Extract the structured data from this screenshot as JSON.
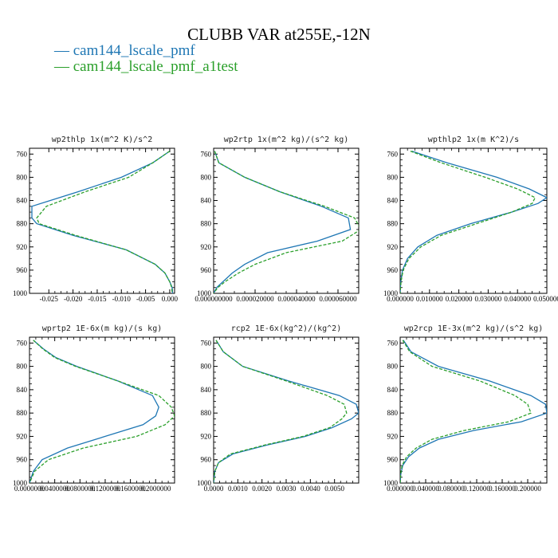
{
  "figure": {
    "title": "CLUBB VAR at255E,-12N",
    "legend": [
      {
        "label": "— cam144_lscale_pmf",
        "color": "#1f77b4",
        "dash": false
      },
      {
        "label": "— cam144_lscale_pmf_a1test",
        "color": "#2ca02c",
        "dash": true
      }
    ]
  },
  "chart_data": [
    {
      "type": "line",
      "title": "wp2thlp   1x(m^2 K)/s^2",
      "xlim": [
        -0.029,
        0.001
      ],
      "ylim": [
        1000,
        750
      ],
      "xticks": [
        -0.025,
        -0.02,
        -0.015,
        -0.01,
        -0.005,
        0.0
      ],
      "xtick_labels": [
        "-0.025",
        "-0.020",
        "-0.015",
        "-0.010",
        "-0.005",
        "0.000"
      ],
      "yticks": [
        760,
        800,
        840,
        880,
        920,
        960,
        1000
      ],
      "y": [
        755,
        775,
        800,
        825,
        850,
        870,
        880,
        900,
        925,
        950,
        965,
        980,
        990,
        1000
      ],
      "series": [
        {
          "name": "cam144_lscale_pmf",
          "color": "#1f77b4",
          "dash": false,
          "x": [
            0.0,
            -0.0035,
            -0.01,
            -0.019,
            -0.0285,
            -0.0285,
            -0.0275,
            -0.02,
            -0.009,
            -0.003,
            -0.001,
            0.0,
            0.0005,
            0.0006
          ]
        },
        {
          "name": "cam144_lscale_pmf_a1test",
          "color": "#2ca02c",
          "dash": true,
          "x": [
            0.0,
            -0.0035,
            -0.0085,
            -0.0175,
            -0.0255,
            -0.0275,
            -0.027,
            -0.0195,
            -0.009,
            -0.003,
            -0.001,
            0.0,
            0.0004,
            0.0005
          ]
        }
      ]
    },
    {
      "type": "line",
      "title": "wp2rtp   1x(m^2 kg)/(s^2 kg)",
      "xlim": [
        0.0,
        7e-05
      ],
      "ylim": [
        1000,
        750
      ],
      "xticks": [
        0.0,
        2e-05,
        4e-05,
        6e-05
      ],
      "xtick_labels": [
        "0.000000000",
        "0.000020000",
        "0.000040000",
        "0.000060000"
      ],
      "yticks": [
        760,
        800,
        840,
        880,
        920,
        960,
        1000
      ],
      "y": [
        755,
        775,
        800,
        825,
        850,
        870,
        890,
        910,
        930,
        950,
        965,
        980,
        990,
        1000
      ],
      "series": [
        {
          "name": "cam144_lscale_pmf",
          "color": "#1f77b4",
          "dash": false,
          "x": [
            5e-07,
            2.5e-06,
            1.5e-05,
            3.2e-05,
            5.2e-05,
            6.5e-05,
            6.6e-05,
            5e-05,
            2.6e-05,
            1.5e-05,
            9e-06,
            4.5e-06,
            1.5e-06,
            0.0
          ]
        },
        {
          "name": "cam144_lscale_pmf_a1test",
          "color": "#2ca02c",
          "dash": true,
          "x": [
            5e-07,
            2.5e-06,
            1.5e-05,
            3.2e-05,
            5.35e-05,
            6.8e-05,
            7.1e-05,
            6.2e-05,
            3.5e-05,
            2e-05,
            1.2e-05,
            5.5e-06,
            2e-06,
            0.0
          ]
        }
      ]
    },
    {
      "type": "line",
      "title": "wpthlp2   1x(m K^2)/s",
      "xlim": [
        0.0,
        0.05
      ],
      "ylim": [
        1000,
        750
      ],
      "xticks": [
        0.0,
        0.01,
        0.02,
        0.03,
        0.04,
        0.05
      ],
      "xtick_labels": [
        "0.000000",
        "0.010000",
        "0.020000",
        "0.030000",
        "0.040000",
        "0.050000"
      ],
      "yticks": [
        760,
        800,
        840,
        880,
        920,
        960,
        1000
      ],
      "y": [
        755,
        775,
        800,
        820,
        835,
        845,
        860,
        880,
        900,
        920,
        940,
        960,
        980,
        1000
      ],
      "series": [
        {
          "name": "cam144_lscale_pmf",
          "color": "#1f77b4",
          "dash": false,
          "x": [
            0.004,
            0.016,
            0.033,
            0.044,
            0.05,
            0.047,
            0.038,
            0.024,
            0.0125,
            0.006,
            0.0025,
            0.0008,
            0.0002,
            0.0
          ]
        },
        {
          "name": "cam144_lscale_pmf_a1test",
          "color": "#2ca02c",
          "dash": true,
          "x": [
            0.0035,
            0.014,
            0.029,
            0.04,
            0.046,
            0.045,
            0.038,
            0.026,
            0.014,
            0.007,
            0.003,
            0.001,
            0.0003,
            0.0
          ]
        }
      ]
    },
    {
      "type": "line",
      "title": "wprtp2   1E-6x(m kg)/(s kg)",
      "xlim": [
        0.0,
        0.23
      ],
      "ylim": [
        1000,
        750
      ],
      "xticks": [
        0.0,
        0.04,
        0.08,
        0.12,
        0.16,
        0.2
      ],
      "xtick_labels": [
        "0.0000000",
        "0.0400000",
        "0.0800000",
        "0.1200000",
        "0.1600000",
        "0.2000000"
      ],
      "yticks": [
        760,
        800,
        840,
        880,
        920,
        960,
        1000
      ],
      "y": [
        755,
        770,
        785,
        800,
        825,
        850,
        870,
        885,
        900,
        920,
        940,
        960,
        980,
        1000
      ],
      "series": [
        {
          "name": "cam144_lscale_pmf",
          "color": "#1f77b4",
          "dash": false,
          "x": [
            0.006,
            0.022,
            0.042,
            0.075,
            0.14,
            0.195,
            0.205,
            0.2,
            0.18,
            0.12,
            0.06,
            0.02,
            0.006,
            0.0
          ]
        },
        {
          "name": "cam144_lscale_pmf_a1test",
          "color": "#2ca02c",
          "dash": true,
          "x": [
            0.006,
            0.021,
            0.04,
            0.073,
            0.14,
            0.205,
            0.225,
            0.23,
            0.215,
            0.17,
            0.085,
            0.03,
            0.008,
            0.0
          ]
        }
      ]
    },
    {
      "type": "line",
      "title": "rcp2   1E-6x(kg^2)/(kg^2)",
      "xlim": [
        0.0,
        0.006
      ],
      "ylim": [
        1000,
        750
      ],
      "xticks": [
        0.0,
        0.001,
        0.002,
        0.003,
        0.004,
        0.005
      ],
      "xtick_labels": [
        "0.0000",
        "0.0010",
        "0.0020",
        "0.0030",
        "0.0040",
        "0.0050"
      ],
      "yticks": [
        760,
        800,
        840,
        880,
        920,
        960,
        1000
      ],
      "y": [
        755,
        775,
        800,
        825,
        850,
        865,
        880,
        890,
        905,
        920,
        935,
        950,
        965,
        980,
        1000
      ],
      "series": [
        {
          "name": "cam144_lscale_pmf",
          "color": "#1f77b4",
          "dash": false,
          "x": [
            0.0001,
            0.0004,
            0.0012,
            0.0031,
            0.0052,
            0.0059,
            0.006,
            0.0057,
            0.0049,
            0.0038,
            0.0022,
            0.0008,
            0.0002,
            5e-05,
            0.0
          ]
        },
        {
          "name": "cam144_lscale_pmf_a1test",
          "color": "#2ca02c",
          "dash": true,
          "x": [
            0.0001,
            0.0004,
            0.0012,
            0.003,
            0.0047,
            0.0054,
            0.0055,
            0.0053,
            0.0048,
            0.0037,
            0.0021,
            0.0007,
            0.0002,
            5e-05,
            0.0
          ]
        }
      ]
    },
    {
      "type": "line",
      "title": "wp2rcp   1E-3x(m^2 kg)/(s^2 kg)",
      "xlim": [
        0.0,
        0.23
      ],
      "ylim": [
        1000,
        750
      ],
      "xticks": [
        0.0,
        0.04,
        0.08,
        0.12,
        0.16,
        0.2
      ],
      "xtick_labels": [
        "0.000000",
        "0.040000",
        "0.080000",
        "0.120000",
        "0.160000",
        "0.200000"
      ],
      "yticks": [
        760,
        800,
        840,
        880,
        920,
        960,
        1000
      ],
      "y": [
        755,
        775,
        800,
        825,
        850,
        865,
        880,
        895,
        910,
        925,
        940,
        955,
        970,
        985,
        1000
      ],
      "series": [
        {
          "name": "cam144_lscale_pmf",
          "color": "#1f77b4",
          "dash": false,
          "x": [
            0.005,
            0.017,
            0.06,
            0.14,
            0.205,
            0.228,
            0.23,
            0.19,
            0.115,
            0.06,
            0.03,
            0.013,
            0.004,
            0.001,
            0.0
          ]
        },
        {
          "name": "cam144_lscale_pmf_a1test",
          "color": "#2ca02c",
          "dash": true,
          "x": [
            0.004,
            0.015,
            0.05,
            0.125,
            0.18,
            0.2,
            0.205,
            0.17,
            0.1,
            0.05,
            0.025,
            0.01,
            0.003,
            0.0008,
            0.0
          ]
        }
      ]
    }
  ]
}
